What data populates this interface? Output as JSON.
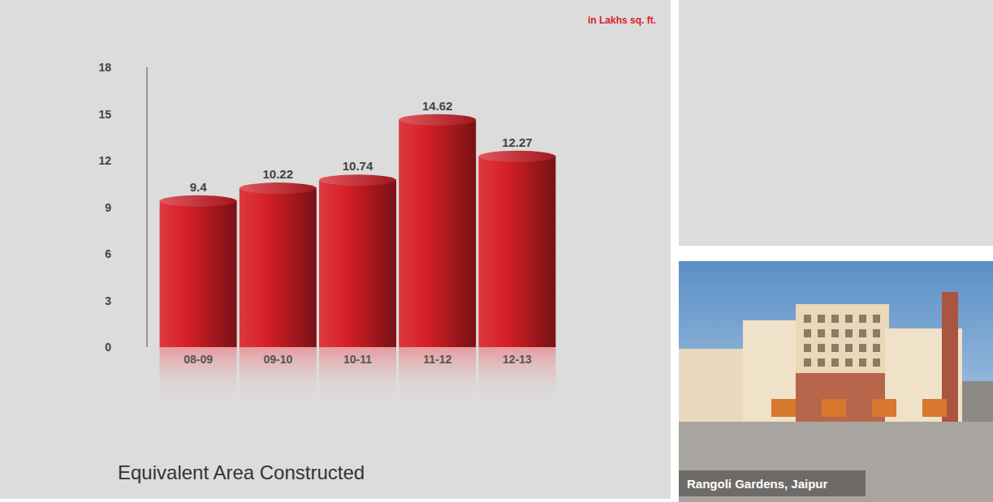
{
  "chart_data": {
    "type": "bar",
    "title": "Equivalent Area Constructed",
    "ylabel": "in Lakhs sq. ft.",
    "categories": [
      "08-09",
      "09-10",
      "10-11",
      "11-12",
      "12-13"
    ],
    "values": [
      9.4,
      10.22,
      10.74,
      14.62,
      12.27
    ],
    "color": "#d71f26",
    "ylim": [
      0,
      18
    ],
    "yticks": [
      0,
      3,
      6,
      9,
      12,
      15,
      18
    ],
    "grid": false,
    "data_labels": true
  },
  "photo": {
    "caption": "Rangoli Gardens, Jaipur"
  }
}
